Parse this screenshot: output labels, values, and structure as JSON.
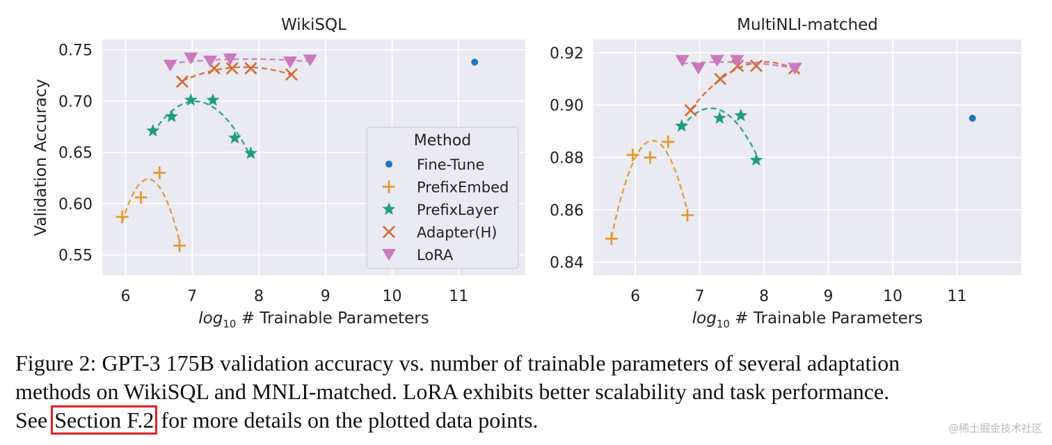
{
  "chart_data": [
    {
      "type": "scatter",
      "title": "WikiSQL",
      "xlabel_prefix": "log",
      "xlabel_sub": "10",
      "xlabel_rest": " # Trainable Parameters",
      "ylabel": "Validation Accuracy",
      "xlim": [
        5.65,
        12.0
      ],
      "ylim": [
        0.53,
        0.76
      ],
      "xticks": [
        6,
        7,
        8,
        9,
        10,
        11
      ],
      "yticks": [
        0.55,
        0.6,
        0.65,
        0.7,
        0.75
      ],
      "ytick_labels": [
        "0.55",
        "0.60",
        "0.65",
        "0.70",
        "0.75"
      ],
      "grid": true,
      "legend": {
        "title": "Method",
        "placement": "center-right",
        "entries": [
          "Fine-Tune",
          "PrefixEmbed",
          "PrefixLayer",
          "Adapter(H)",
          "LoRA"
        ]
      },
      "series": [
        {
          "name": "Fine-Tune",
          "marker": "circle",
          "color": "#1f77b4",
          "fit": false,
          "points": [
            [
              11.24,
              0.738
            ]
          ]
        },
        {
          "name": "PrefixEmbed",
          "marker": "plus",
          "color": "#e69522",
          "fit": true,
          "points": [
            [
              5.95,
              0.587
            ],
            [
              6.23,
              0.606
            ],
            [
              6.51,
              0.63
            ],
            [
              6.81,
              0.559
            ]
          ]
        },
        {
          "name": "PrefixLayer",
          "marker": "star",
          "color": "#1f9e77",
          "fit": true,
          "points": [
            [
              6.41,
              0.671
            ],
            [
              6.69,
              0.685
            ],
            [
              6.98,
              0.701
            ],
            [
              7.31,
              0.701
            ],
            [
              7.64,
              0.664
            ],
            [
              7.88,
              0.649
            ]
          ]
        },
        {
          "name": "Adapter(H)",
          "marker": "x",
          "color": "#d8662a",
          "fit": true,
          "points": [
            [
              6.85,
              0.719
            ],
            [
              7.33,
              0.732
            ],
            [
              7.6,
              0.732
            ],
            [
              7.88,
              0.732
            ],
            [
              8.49,
              0.726
            ]
          ]
        },
        {
          "name": "LoRA",
          "marker": "triangle-down",
          "color": "#cc78bc",
          "fit": true,
          "points": [
            [
              6.67,
              0.735
            ],
            [
              6.98,
              0.742
            ],
            [
              7.27,
              0.739
            ],
            [
              7.57,
              0.741
            ],
            [
              8.47,
              0.738
            ],
            [
              8.77,
              0.74
            ]
          ]
        }
      ]
    },
    {
      "type": "scatter",
      "title": "MultiNLI-matched",
      "xlabel_prefix": "log",
      "xlabel_sub": "10",
      "xlabel_rest": " # Trainable Parameters",
      "ylabel": "",
      "xlim": [
        5.35,
        12.0
      ],
      "ylim": [
        0.835,
        0.925
      ],
      "xticks": [
        6,
        7,
        8,
        9,
        10,
        11
      ],
      "yticks": [
        0.84,
        0.86,
        0.88,
        0.9,
        0.92
      ],
      "ytick_labels": [
        "0.84",
        "0.86",
        "0.88",
        "0.90",
        "0.92"
      ],
      "grid": true,
      "series": [
        {
          "name": "Fine-Tune",
          "marker": "circle",
          "color": "#1f77b4",
          "fit": false,
          "points": [
            [
              11.24,
              0.895
            ]
          ]
        },
        {
          "name": "PrefixEmbed",
          "marker": "plus",
          "color": "#e69522",
          "fit": true,
          "points": [
            [
              5.63,
              0.849
            ],
            [
              5.96,
              0.881
            ],
            [
              6.23,
              0.88
            ],
            [
              6.51,
              0.886
            ],
            [
              6.81,
              0.858
            ]
          ]
        },
        {
          "name": "PrefixLayer",
          "marker": "star",
          "color": "#1f9e77",
          "fit": true,
          "points": [
            [
              6.72,
              0.892
            ],
            [
              7.31,
              0.895
            ],
            [
              7.64,
              0.896
            ],
            [
              7.88,
              0.879
            ]
          ]
        },
        {
          "name": "Adapter(H)",
          "marker": "x",
          "color": "#d8662a",
          "fit": true,
          "points": [
            [
              6.86,
              0.898
            ],
            [
              7.32,
              0.91
            ],
            [
              7.59,
              0.915
            ],
            [
              7.88,
              0.915
            ],
            [
              8.47,
              0.914
            ]
          ]
        },
        {
          "name": "LoRA",
          "marker": "triangle-down",
          "color": "#cc78bc",
          "fit": true,
          "points": [
            [
              6.73,
              0.917
            ],
            [
              6.98,
              0.914
            ],
            [
              7.27,
              0.917
            ],
            [
              7.58,
              0.917
            ],
            [
              8.48,
              0.914
            ]
          ]
        }
      ]
    }
  ],
  "caption": {
    "line1": "Figure 2: GPT-3 175B validation accuracy vs. number of trainable parameters of several adaptation",
    "line2": "methods on WikiSQL and MNLI-matched. LoRA exhibits better scalability and task performance.",
    "line3_prefix": "See ",
    "link": "Section F.2",
    "line3_suffix": " for more details on the plotted data points."
  },
  "watermark": "@稀土掘金技术社区",
  "colors": {
    "plot_bg": "#eaeaf2",
    "grid": "#ffffff",
    "link_box": "#e02020"
  }
}
